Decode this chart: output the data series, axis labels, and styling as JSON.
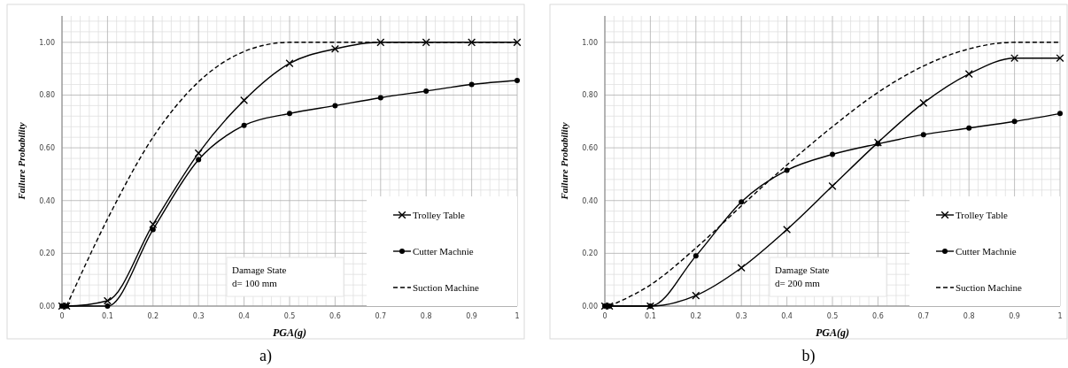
{
  "chart_data": [
    {
      "type": "line",
      "title": "a)",
      "xlabel": "PGA(g)",
      "ylabel": "Failure Probability",
      "annotations": [
        "Damage State\nd= 100 mm"
      ],
      "x": [
        0,
        0.01,
        0.1,
        0.2,
        0.3,
        0.4,
        0.5,
        0.6,
        0.7,
        0.8,
        0.9,
        1
      ],
      "xlim": [
        0,
        1
      ],
      "xticks": [
        0,
        0.1,
        0.2,
        0.3,
        0.4,
        0.5,
        0.6,
        0.7,
        0.8,
        0.9,
        1
      ],
      "ylim": [
        0,
        1.1
      ],
      "yticks": [
        {
          "value": 0,
          "label": "0.00"
        },
        {
          "value": 0.2,
          "label": "0.20"
        },
        {
          "value": 0.4,
          "label": "0.40"
        },
        {
          "value": 0.6,
          "label": "0.60"
        },
        {
          "value": 0.8,
          "label": "0.80"
        },
        {
          "value": 1,
          "label": "1.00"
        }
      ],
      "grid": true,
      "legend": "bottom right",
      "series": [
        {
          "name": "Trolley Table",
          "color": "#000000",
          "marker": "cross",
          "line_style": "solid",
          "values": [
            0,
            0,
            0.02,
            0.31,
            0.58,
            0.78,
            0.92,
            0.975,
            1.0,
            1.0,
            1.0,
            1.0
          ]
        },
        {
          "name": "Cutter Machnie",
          "color": "#000000",
          "marker": "circle",
          "line_style": "solid",
          "values": [
            0,
            0,
            0,
            0.29,
            0.555,
            0.685,
            0.73,
            0.76,
            0.79,
            0.815,
            0.84,
            0.855
          ]
        },
        {
          "name": "Suction Machine",
          "color": "#000000",
          "marker": "none",
          "line_style": "dashed",
          "x": [
            0.01,
            0.1,
            0.2,
            0.3,
            0.4,
            0.5,
            0.6,
            0.7,
            0.8,
            0.9,
            1
          ],
          "values": [
            0,
            0.33,
            0.64,
            0.85,
            0.965,
            1.0,
            1.0,
            1.0,
            1.0,
            1.0,
            1.0
          ]
        }
      ]
    },
    {
      "type": "line",
      "title": "b)",
      "xlabel": "PGA(g)",
      "ylabel": "Failure Probability",
      "annotations": [
        "Damage State\nd= 200 mm"
      ],
      "x": [
        0,
        0.01,
        0.1,
        0.2,
        0.3,
        0.4,
        0.5,
        0.6,
        0.7,
        0.8,
        0.9,
        1
      ],
      "xlim": [
        0,
        1
      ],
      "xticks": [
        0,
        0.1,
        0.2,
        0.3,
        0.4,
        0.5,
        0.6,
        0.7,
        0.8,
        0.9,
        1
      ],
      "ylim": [
        0,
        1.1
      ],
      "yticks": [
        {
          "value": 0,
          "label": "0.00"
        },
        {
          "value": 0.2,
          "label": "0.20"
        },
        {
          "value": 0.4,
          "label": "0.40"
        },
        {
          "value": 0.6,
          "label": "0.60"
        },
        {
          "value": 0.8,
          "label": "0.80"
        },
        {
          "value": 1,
          "label": "1.00"
        }
      ],
      "grid": true,
      "legend": "bottom right",
      "series": [
        {
          "name": "Trolley Table",
          "color": "#000000",
          "marker": "cross",
          "line_style": "solid",
          "values": [
            0,
            0,
            0,
            0.04,
            0.145,
            0.29,
            0.455,
            0.62,
            0.77,
            0.88,
            0.94,
            0.94
          ]
        },
        {
          "name": "Cutter Machnie",
          "color": "#000000",
          "marker": "circle",
          "line_style": "solid",
          "values": [
            0,
            0,
            0,
            0.19,
            0.395,
            0.515,
            0.575,
            0.615,
            0.65,
            0.675,
            0.7,
            0.73
          ]
        },
        {
          "name": "Suction Machine",
          "color": "#000000",
          "marker": "none",
          "line_style": "dashed",
          "x": [
            0.01,
            0.1,
            0.2,
            0.3,
            0.4,
            0.5,
            0.6,
            0.7,
            0.8,
            0.9,
            1
          ],
          "values": [
            0,
            0.08,
            0.22,
            0.38,
            0.535,
            0.68,
            0.81,
            0.91,
            0.975,
            1.0,
            1.0
          ]
        }
      ]
    }
  ]
}
